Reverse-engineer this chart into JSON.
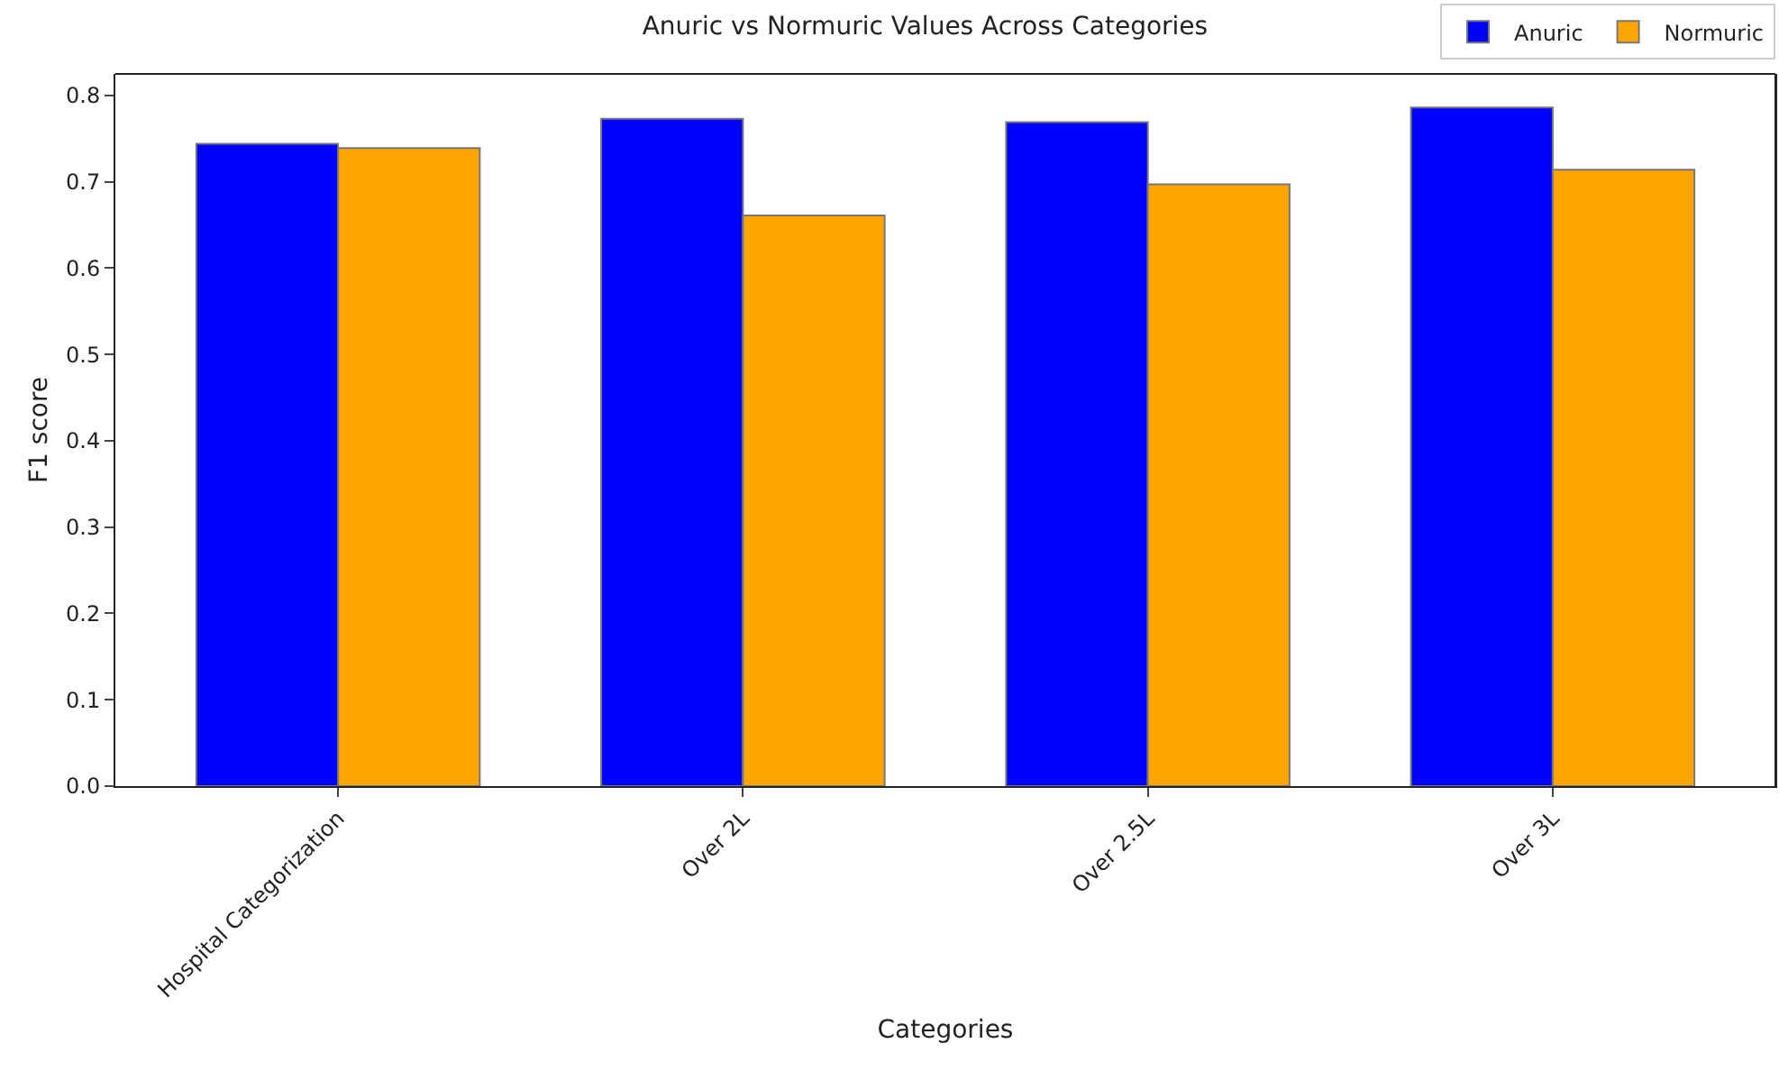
{
  "chart_data": {
    "type": "bar",
    "title": "Anuric vs Normuric Values Across Categories",
    "xlabel": "Categories",
    "ylabel": "F1 score",
    "categories": [
      "Hospital Categorization",
      "Over 2L",
      "Over 2.5L",
      "Over 3L"
    ],
    "series": [
      {
        "name": "Anuric",
        "color": "#0000ff",
        "values": [
          0.744,
          0.773,
          0.769,
          0.786
        ]
      },
      {
        "name": "Normuric",
        "color": "#ffa500",
        "values": [
          0.739,
          0.661,
          0.697,
          0.714
        ]
      }
    ],
    "ylim": [
      0,
      0.825
    ],
    "yticks": [
      {
        "value": 0,
        "label": "0.0"
      },
      0.1,
      0.2,
      0.3,
      0.4,
      0.5,
      0.6,
      0.7,
      0.8
    ],
    "grid": false,
    "legend": "top"
  }
}
